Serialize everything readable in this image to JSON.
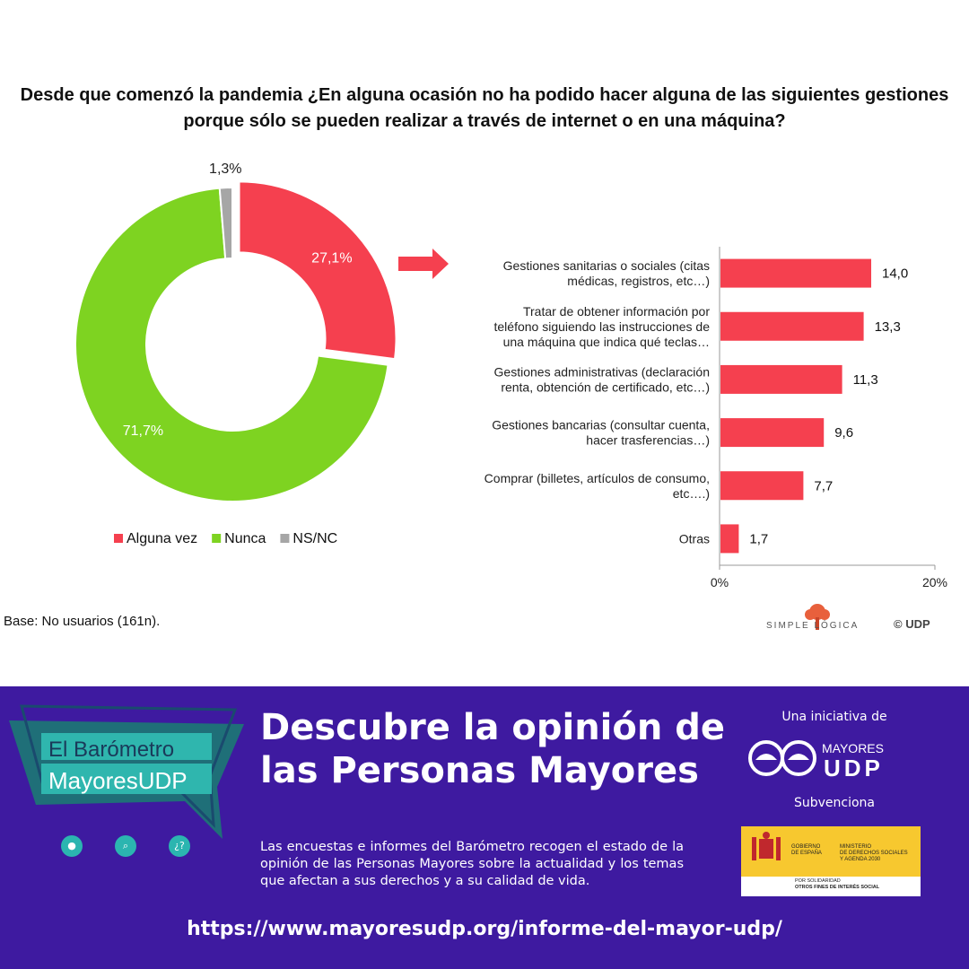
{
  "title": "Desde que comenzó la pandemia ¿En alguna ocasión no ha podido hacer alguna de las siguientes gestiones porque sólo se pueden realizar a través de internet o en una máquina?",
  "base_note": "Base: No usuarios (161n).",
  "colors": {
    "red": "#f5404f",
    "green": "#7ed321",
    "gray": "#a6a6a6",
    "purple": "#3e1aa0",
    "teal": "#2bb5b0"
  },
  "chart_data": [
    {
      "type": "pie",
      "donut": true,
      "labels": [
        "Alguna vez",
        "Nunca",
        "NS/NC"
      ],
      "values": [
        27.1,
        71.7,
        1.3
      ],
      "value_labels": [
        "27,1%",
        "71,7%",
        "1,3%"
      ],
      "legend": "bottom",
      "exploded": "Alguna vez"
    },
    {
      "type": "bar",
      "orientation": "horizontal",
      "categories": [
        [
          "Gestiones sanitarias o sociales (citas",
          "médicas, registros, etc…)"
        ],
        [
          "Tratar de obtener información por",
          "teléfono siguiendo las instrucciones de",
          "una máquina que indica qué teclas…"
        ],
        [
          "Gestiones administrativas (declaración",
          "renta, obtención de certificado, etc…)"
        ],
        [
          "Gestiones bancarias (consultar cuenta,",
          "hacer trasferencias…)"
        ],
        [
          "Comprar (billetes, artículos de consumo,",
          "etc….)"
        ],
        [
          "Otras"
        ]
      ],
      "values": [
        14.0,
        13.3,
        11.3,
        9.6,
        7.7,
        1.7
      ],
      "value_labels": [
        "14,0",
        "13,3",
        "11,3",
        "9,6",
        "7,7",
        "1,7"
      ],
      "xlim": [
        0,
        20
      ],
      "xticks": [
        "0%",
        "20%"
      ],
      "grid": false
    }
  ],
  "logos": {
    "simple_logica": "SIMPLE LÓGICA",
    "copyright": "© UDP"
  },
  "banner": {
    "baro_line1": "El Barómetro",
    "baro_line2": "MayoresUDP",
    "headline": "Descubre la opinión de las Personas Mayores",
    "paragraph": "Las encuestas e informes del Barómetro recogen el estado de la opinión de las Personas Mayores sobre la actualidad y los temas que afectan a sus derechos y a su calidad de vida.",
    "url": "https://www.mayoresudp.org/informe-del-mayor-udp/",
    "iniciativa": "Una iniciativa de",
    "mayores_top": "MAYORES",
    "mayores_bottom": "UDP",
    "subvenciona": "Subvenciona",
    "gob_left": [
      "GOBIERNO",
      "DE ESPAÑA"
    ],
    "gob_right": [
      "MINISTERIO",
      "DE DERECHOS SOCIALES",
      "Y AGENDA 2030"
    ],
    "gob_sol": [
      "POR SOLIDARIDAD",
      "OTROS FINES DE INTERÉS SOCIAL"
    ],
    "icons": [
      "person-icon",
      "search-icon",
      "question-icon"
    ],
    "icon_glyphs": [
      "●",
      "⌕",
      "¿?"
    ]
  }
}
